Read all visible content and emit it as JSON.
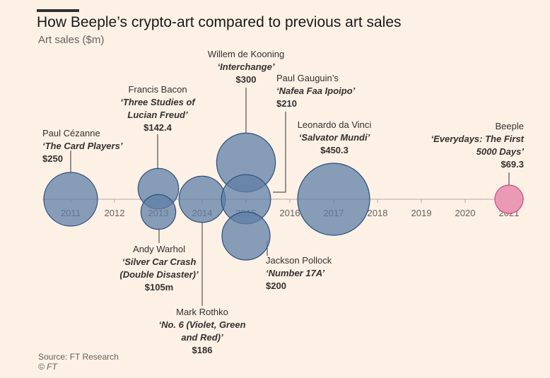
{
  "header": {
    "title": "How Beeple’s crypto-art compared to previous art sales",
    "subtitle": "Art sales ($m)"
  },
  "footer": {
    "source": "Source: FT Research",
    "copyright": "© FT"
  },
  "colors": {
    "bubble": "#5f7fa6",
    "bubble_stroke": "#2c4f7c",
    "highlight": "#e995b2",
    "highlight_stroke": "#c94f7e",
    "background": "#fdf1e6"
  },
  "chart_data": {
    "type": "scatter",
    "title": "How Beeple’s crypto-art compared to previous art sales",
    "ylabel": "Art sales ($m)",
    "xlim": [
      2011,
      2021
    ],
    "x_ticks": [
      "2011",
      "2012",
      "2013",
      "2014",
      "2015",
      "2016",
      "2017",
      "2018",
      "2019",
      "2020",
      "2021"
    ],
    "points": [
      {
        "artist": "Paul Cézanne",
        "artwork": "‘The Card Players’",
        "value_label": "$250",
        "year": 2011,
        "value": 250
      },
      {
        "artist": "Francis Bacon",
        "artwork": "‘Three Studies of Lucian Freud’",
        "artwork_lines": [
          "‘Three Studies of",
          "Lucian Freud’"
        ],
        "value_label": "$142.4",
        "year": 2013,
        "value": 142.4
      },
      {
        "artist": "Andy Warhol",
        "artwork": "‘Silver Car Crash (Double Disaster)’",
        "artwork_lines": [
          "‘Silver Car Crash",
          "(Double Disaster)’"
        ],
        "value_label": "$105m",
        "year": 2013,
        "value": 105
      },
      {
        "artist": "Mark Rothko",
        "artwork": "‘No. 6 (Violet, Green and Red)’",
        "artwork_lines": [
          "‘No. 6 (Violet, Green",
          "and Red)’"
        ],
        "value_label": "$186",
        "year": 2014,
        "value": 186
      },
      {
        "artist": "Willem de Kooning",
        "artwork": "‘Interchange’",
        "value_label": "$300",
        "year": 2015,
        "value": 300
      },
      {
        "artist": "Paul Gauguin’s",
        "artwork": "‘Nafea Faa Ipoipo’",
        "value_label": "$210",
        "year": 2015,
        "value": 210
      },
      {
        "artist": "Jackson Pollock",
        "artwork": "‘Number 17A’",
        "value_label": "$200",
        "year": 2015,
        "value": 200
      },
      {
        "artist": "Leonardo da Vinci",
        "artwork": "‘Salvator Mundi’",
        "value_label": "$450.3",
        "year": 2017,
        "value": 450.3
      },
      {
        "artist": "Beeple",
        "artwork": "‘Everydays: The First 5000 Days’",
        "artwork_lines": [
          "‘Everydays: The First",
          "5000 Days’"
        ],
        "value_label": "$69.3",
        "year": 2021,
        "value": 69.3,
        "highlight": true
      }
    ]
  }
}
